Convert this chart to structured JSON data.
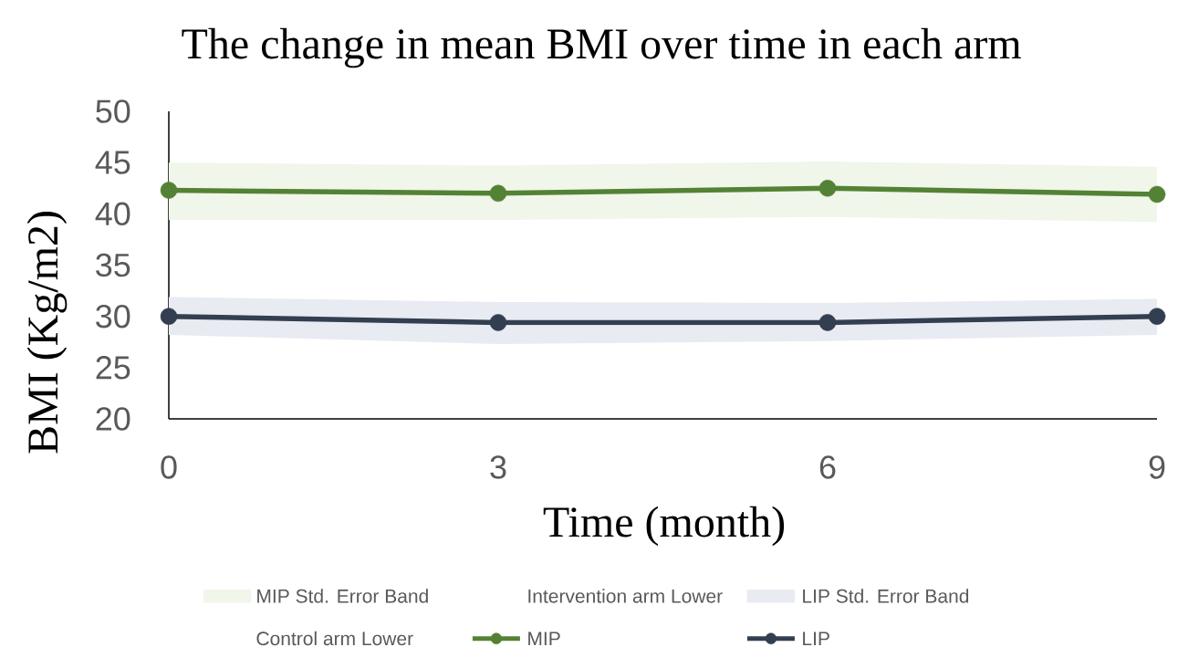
{
  "chart_data": {
    "type": "line",
    "title": "The change in mean BMI over time in each arm",
    "xlabel": "Time (month)",
    "ylabel": "BMI (Kg/m2)",
    "x": [
      0,
      3,
      6,
      9
    ],
    "xlim": [
      0,
      9
    ],
    "xticks": [
      0,
      3,
      6,
      9
    ],
    "ylim": [
      20,
      50
    ],
    "yticks": [
      20,
      25,
      30,
      35,
      40,
      45,
      50
    ],
    "legend": "bottom",
    "line_style": "solid",
    "annotations": [
      "Intervention arm Lower",
      "Control arm Lower"
    ],
    "series": [
      {
        "name": "MIP Std. Error Band",
        "type": "area",
        "color": "#f0f6ea",
        "values": [
          null,
          null,
          null,
          null
        ],
        "lower": [
          39.4,
          39.4,
          39.7,
          39.2
        ],
        "upper": [
          45.0,
          44.7,
          45.1,
          44.6
        ]
      },
      {
        "name": "LIP Std. Error Band",
        "type": "area",
        "color": "#e8ebf1",
        "values": [
          null,
          null,
          null,
          null
        ],
        "lower": [
          28.2,
          27.3,
          27.6,
          28.2
        ],
        "upper": [
          31.9,
          31.4,
          31.3,
          31.7
        ]
      },
      {
        "name": "MIP",
        "color": "#548235",
        "marker": "circle",
        "values": [
          42.3,
          42.0,
          42.5,
          41.9
        ]
      },
      {
        "name": "LIP",
        "color": "#333f50",
        "marker": "circle",
        "values": [
          30.0,
          29.4,
          29.4,
          30.0
        ]
      }
    ]
  }
}
